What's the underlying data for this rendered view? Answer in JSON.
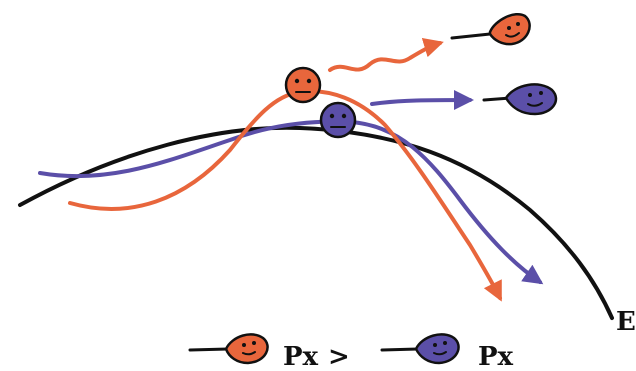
{
  "labels": {
    "e_curve": "E",
    "px_left": "Px",
    "comparison": ">",
    "px_right": "Px"
  },
  "colors": {
    "orange": "#e8663c",
    "blue": "#5b4fa8",
    "black": "#111111"
  },
  "icons": {
    "orange_particle": "orange-face-ball-icon",
    "blue_particle": "blue-face-ball-icon",
    "orange_comet": "orange-comet-face-icon",
    "blue_comet": "blue-comet-face-icon"
  }
}
